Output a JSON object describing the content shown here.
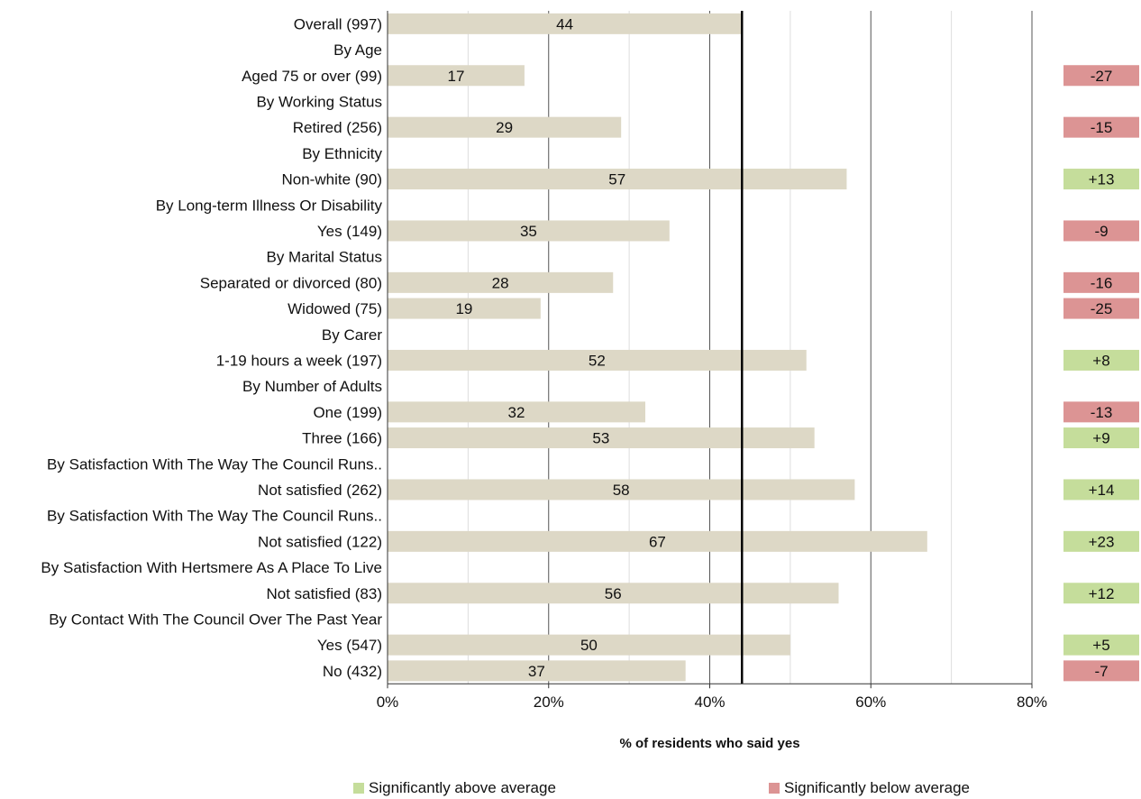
{
  "chart_data": {
    "type": "bar",
    "orientation": "horizontal",
    "xlabel": "% of residents who said yes",
    "xlim": [
      0,
      80
    ],
    "x_ticks": [
      "0%",
      "20%",
      "40%",
      "60%",
      "80%"
    ],
    "average_line_value": 44,
    "rows": [
      {
        "label": "Overall (997)",
        "value": 44,
        "diff": null
      },
      {
        "label": "By Age",
        "value": null,
        "diff": null
      },
      {
        "label": "Aged 75 or over (99)",
        "value": 17,
        "diff": "-27"
      },
      {
        "label": "By Working Status",
        "value": null,
        "diff": null
      },
      {
        "label": "Retired (256)",
        "value": 29,
        "diff": "-15"
      },
      {
        "label": "By Ethnicity",
        "value": null,
        "diff": null
      },
      {
        "label": "Non-white (90)",
        "value": 57,
        "diff": "+13"
      },
      {
        "label": "By Long-term Illness Or Disability",
        "value": null,
        "diff": null
      },
      {
        "label": "Yes (149)",
        "value": 35,
        "diff": "-9"
      },
      {
        "label": "By Marital Status",
        "value": null,
        "diff": null
      },
      {
        "label": "Separated or divorced (80)",
        "value": 28,
        "diff": "-16"
      },
      {
        "label": "Widowed (75)",
        "value": 19,
        "diff": "-25"
      },
      {
        "label": "By Carer",
        "value": null,
        "diff": null
      },
      {
        "label": "1-19 hours a week (197)",
        "value": 52,
        "diff": "+8"
      },
      {
        "label": "By Number of Adults",
        "value": null,
        "diff": null
      },
      {
        "label": "One (199)",
        "value": 32,
        "diff": "-13"
      },
      {
        "label": "Three (166)",
        "value": 53,
        "diff": "+9"
      },
      {
        "label": "By Satisfaction With The Way The Council Runs..",
        "value": null,
        "diff": null
      },
      {
        "label": "Not satisfied (262)",
        "value": 58,
        "diff": "+14"
      },
      {
        "label": "By Satisfaction With The Way The Council Runs..",
        "value": null,
        "diff": null
      },
      {
        "label": "Not satisfied (122)",
        "value": 67,
        "diff": "+23"
      },
      {
        "label": "By Satisfaction With Hertsmere As A Place To Live",
        "value": null,
        "diff": null
      },
      {
        "label": "Not satisfied (83)",
        "value": 56,
        "diff": "+12"
      },
      {
        "label": "By Contact With The Council Over The Past Year",
        "value": null,
        "diff": null
      },
      {
        "label": "Yes (547)",
        "value": 50,
        "diff": "+5"
      },
      {
        "label": "No (432)",
        "value": 37,
        "diff": "-7"
      }
    ],
    "legend": [
      {
        "label": "Significantly above average",
        "color": "#c5dd9b"
      },
      {
        "label": "Significantly below average",
        "color": "#dc9494"
      }
    ],
    "colors": {
      "bar": "#ddd8c6",
      "above": "#c5dd9b",
      "below": "#dc9494",
      "average_line": "#000000",
      "grid": "#000000"
    }
  }
}
